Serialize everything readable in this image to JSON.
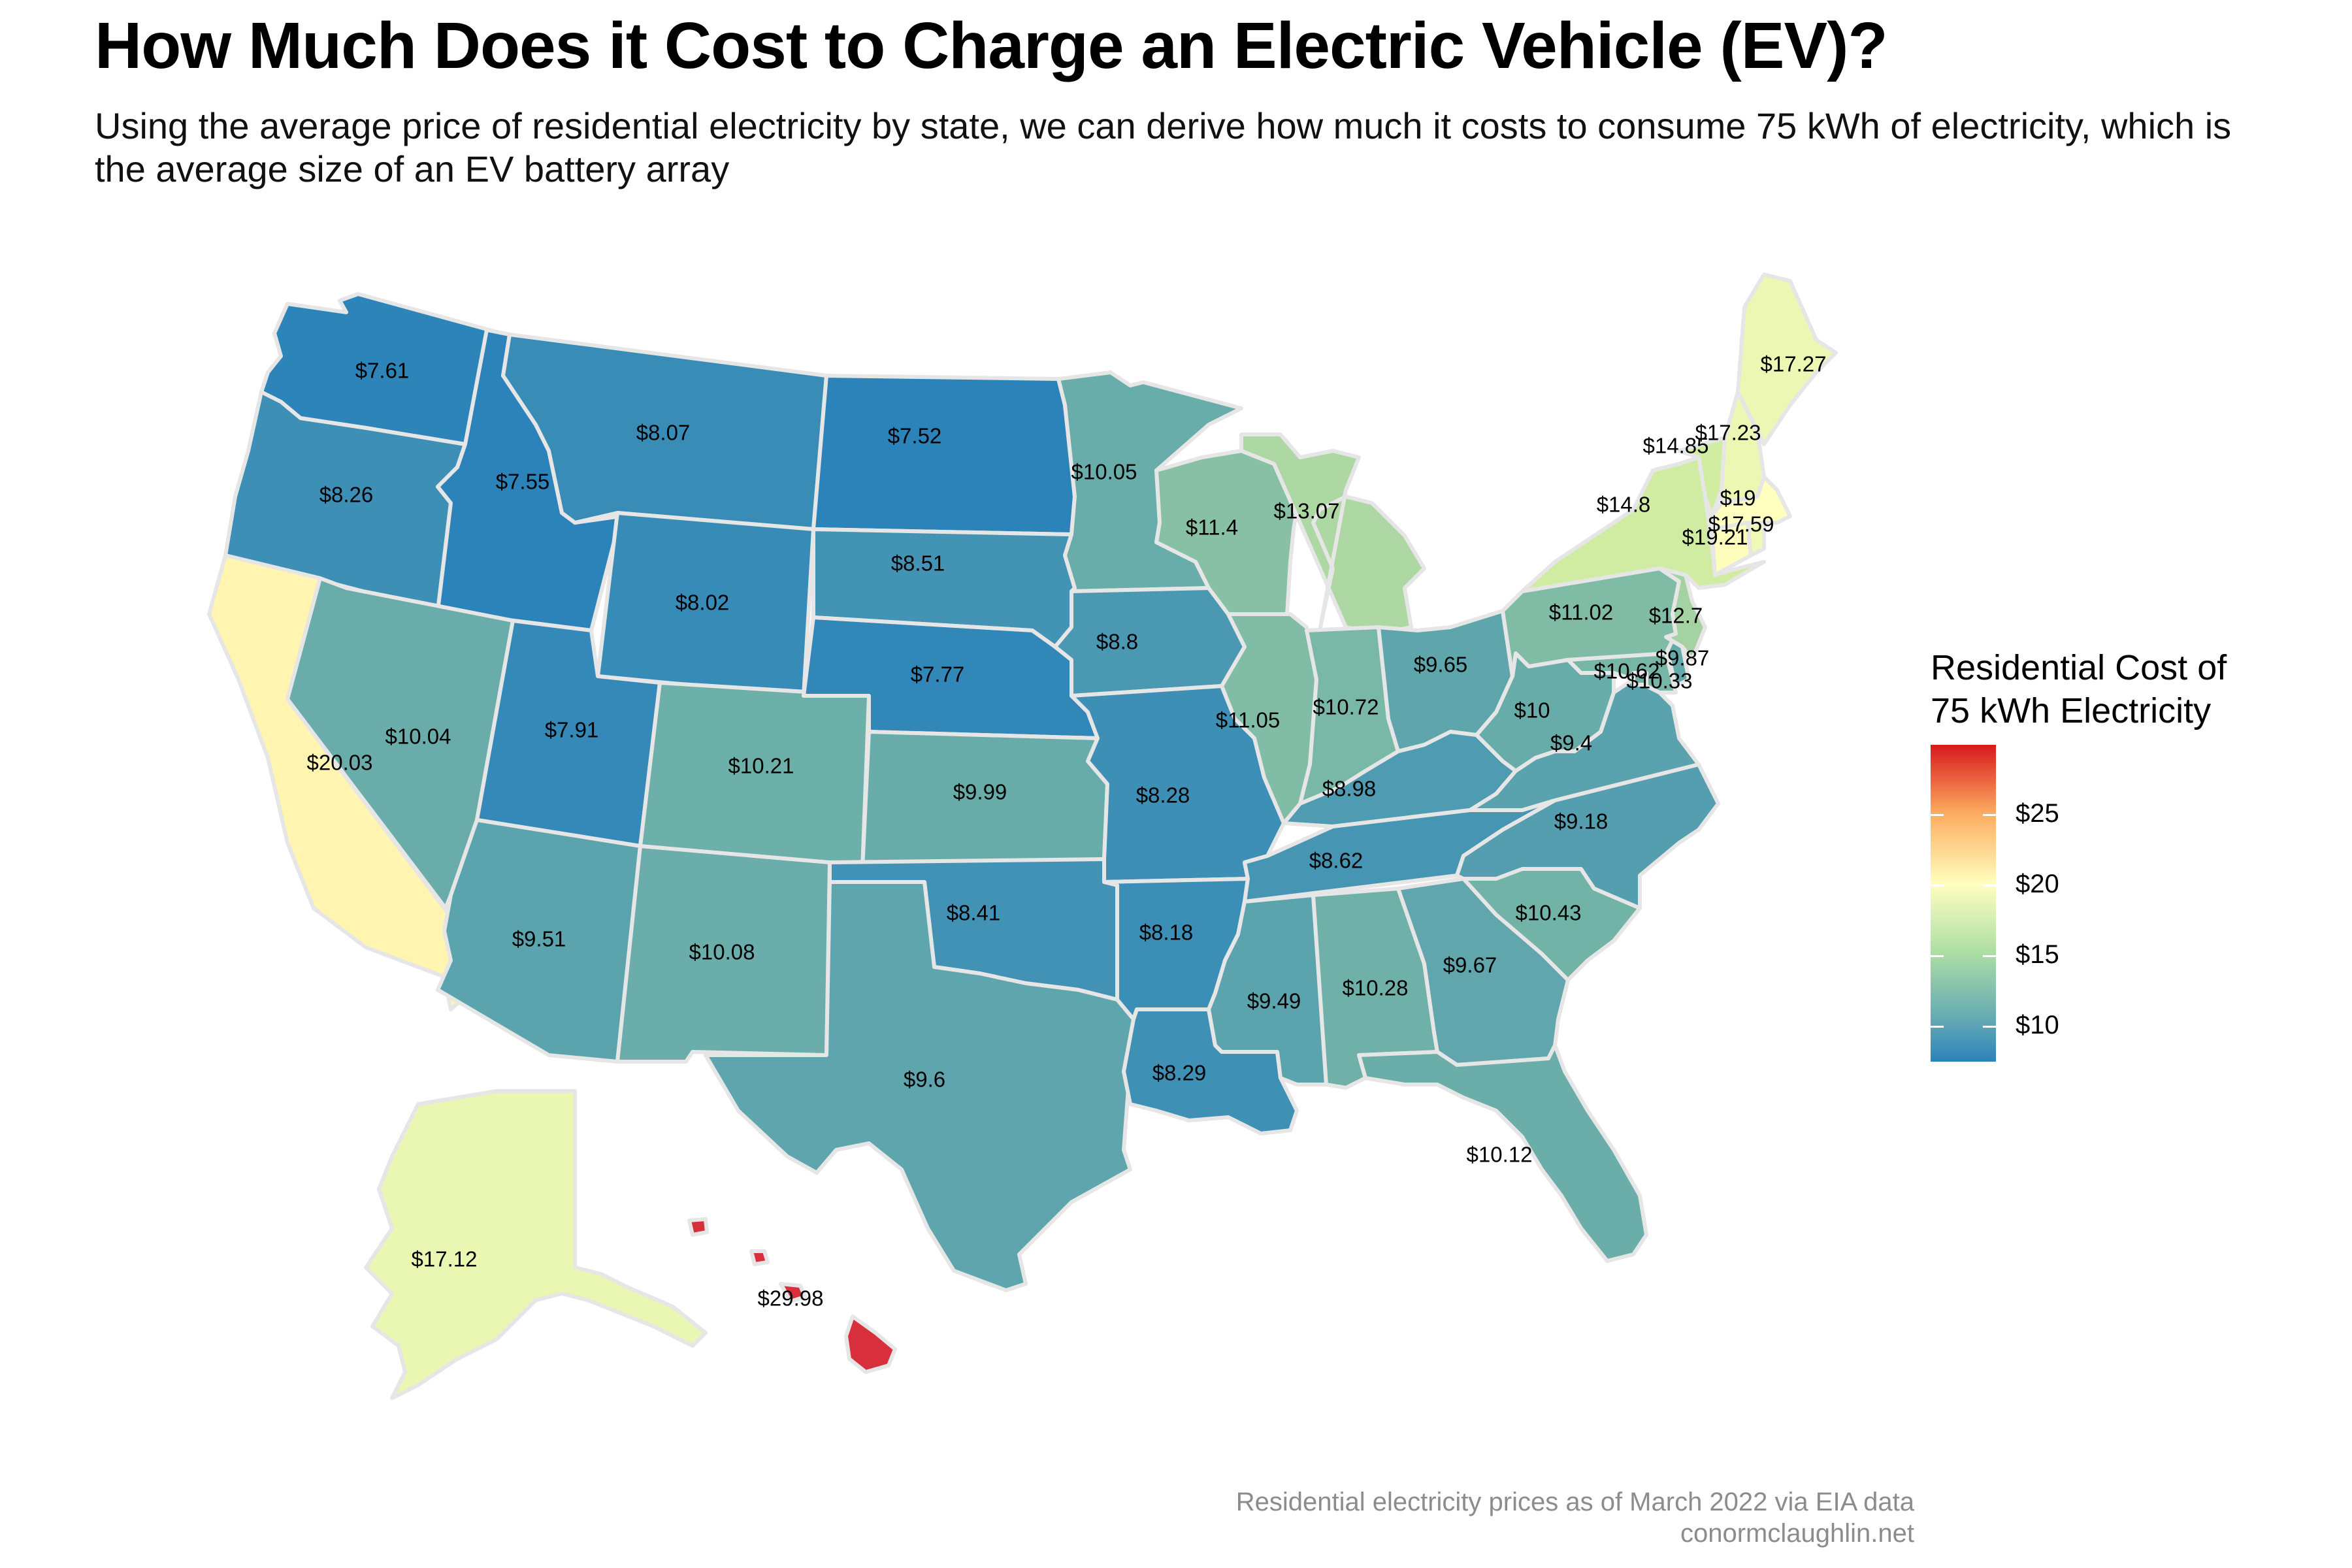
{
  "title": "How Much Does it Cost to Charge an Electric Vehicle (EV)?",
  "subtitle": "Using the average price of residential electricity by state, we can derive how much it costs to consume 75 kWh of electricity, which is the average size of an EV battery array",
  "legend": {
    "title_line1": "Residential Cost of",
    "title_line2": "75 kWh Electricity",
    "ticks": [
      "$10",
      "$15",
      "$20",
      "$25"
    ],
    "tick_values": [
      10,
      15,
      20,
      25
    ],
    "domain": [
      7.52,
      29.98
    ],
    "colors": [
      "#2b83ba",
      "#abdda4",
      "#ffffbf",
      "#fdae61",
      "#d7191c"
    ]
  },
  "caption": {
    "line1": "Residential electricity prices as of March 2022 via EIA data",
    "line2": "conormclaughlin.net"
  },
  "chart_data": {
    "type": "choropleth",
    "value_unit": "USD per 75 kWh",
    "states": [
      {
        "state": "Washington",
        "label": "$7.61",
        "value": 7.61
      },
      {
        "state": "Oregon",
        "label": "$8.26",
        "value": 8.26
      },
      {
        "state": "California",
        "label": "$20.03",
        "value": 20.03
      },
      {
        "state": "Idaho",
        "label": "$7.55",
        "value": 7.55
      },
      {
        "state": "Nevada",
        "label": "$10.04",
        "value": 10.04
      },
      {
        "state": "Montana",
        "label": "$8.07",
        "value": 8.07
      },
      {
        "state": "Wyoming",
        "label": "$8.02",
        "value": 8.02
      },
      {
        "state": "Utah",
        "label": "$7.91",
        "value": 7.91
      },
      {
        "state": "Arizona",
        "label": "$9.51",
        "value": 9.51
      },
      {
        "state": "Colorado",
        "label": "$10.21",
        "value": 10.21
      },
      {
        "state": "New Mexico",
        "label": "$10.08",
        "value": 10.08
      },
      {
        "state": "North Dakota",
        "label": "$7.52",
        "value": 7.52
      },
      {
        "state": "South Dakota",
        "label": "$8.51",
        "value": 8.51
      },
      {
        "state": "Nebraska",
        "label": "$7.77",
        "value": 7.77
      },
      {
        "state": "Kansas",
        "label": "$9.99",
        "value": 9.99
      },
      {
        "state": "Oklahoma",
        "label": "$8.41",
        "value": 8.41
      },
      {
        "state": "Texas",
        "label": "$9.6",
        "value": 9.6
      },
      {
        "state": "Minnesota",
        "label": "$10.05",
        "value": 10.05
      },
      {
        "state": "Iowa",
        "label": "$8.8",
        "value": 8.8
      },
      {
        "state": "Missouri",
        "label": "$8.28",
        "value": 8.28
      },
      {
        "state": "Arkansas",
        "label": "$8.18",
        "value": 8.18
      },
      {
        "state": "Louisiana",
        "label": "$8.29",
        "value": 8.29
      },
      {
        "state": "Wisconsin",
        "label": "$11.4",
        "value": 11.4
      },
      {
        "state": "Illinois",
        "label": "$11.05",
        "value": 11.05
      },
      {
        "state": "Michigan",
        "label": "$13.07",
        "value": 13.07
      },
      {
        "state": "Indiana",
        "label": "$10.72",
        "value": 10.72
      },
      {
        "state": "Ohio",
        "label": "$9.65",
        "value": 9.65
      },
      {
        "state": "Kentucky",
        "label": "$8.98",
        "value": 8.98
      },
      {
        "state": "Tennessee",
        "label": "$8.62",
        "value": 8.62
      },
      {
        "state": "Mississippi",
        "label": "$9.49",
        "value": 9.49
      },
      {
        "state": "Alabama",
        "label": "$10.28",
        "value": 10.28
      },
      {
        "state": "Georgia",
        "label": "$9.67",
        "value": 9.67
      },
      {
        "state": "Florida",
        "label": "$10.12",
        "value": 10.12
      },
      {
        "state": "South Carolina",
        "label": "$10.43",
        "value": 10.43
      },
      {
        "state": "North Carolina",
        "label": "$9.18",
        "value": 9.18
      },
      {
        "state": "Virginia",
        "label": "$9.4",
        "value": 9.4
      },
      {
        "state": "West Virginia",
        "label": "$10",
        "value": 10
      },
      {
        "state": "Maryland",
        "label": "$10.62",
        "value": 10.62
      },
      {
        "state": "Delaware",
        "label": "$9.87",
        "value": 9.87
      },
      {
        "state": "District of Columbia",
        "label": "$10.33",
        "value": 10.33
      },
      {
        "state": "Pennsylvania",
        "label": "$11.02",
        "value": 11.02
      },
      {
        "state": "New Jersey",
        "label": "$12.7",
        "value": 12.7
      },
      {
        "state": "New York",
        "label": "$14.8",
        "value": 14.8
      },
      {
        "state": "Connecticut",
        "label": "$19.21",
        "value": 19.21
      },
      {
        "state": "Rhode Island",
        "label": "$17.59",
        "value": 17.59
      },
      {
        "state": "Massachusetts",
        "label": "$19",
        "value": 19
      },
      {
        "state": "Vermont",
        "label": "$14.85",
        "value": 14.85
      },
      {
        "state": "New Hampshire",
        "label": "$17.23",
        "value": 17.23
      },
      {
        "state": "Maine",
        "label": "$17.27",
        "value": 17.27
      },
      {
        "state": "Alaska",
        "label": "$17.12",
        "value": 17.12
      },
      {
        "state": "Hawaii",
        "label": "$29.98",
        "value": 29.98
      }
    ]
  }
}
